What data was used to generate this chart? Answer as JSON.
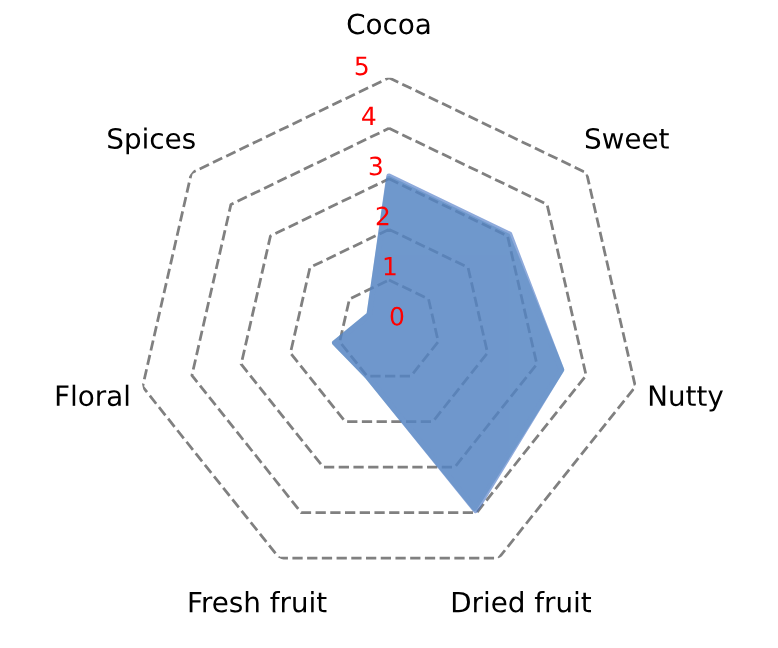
{
  "chart_data": {
    "type": "radar",
    "categories": [
      "Cocoa",
      "Sweet",
      "Nutty",
      "Dried fruit",
      "Fresh fruit",
      "Floral",
      "Spices"
    ],
    "series": [
      {
        "color": "#7fb2c0",
        "values": [
          3.0,
          3.0,
          3.5,
          3.9,
          1.0,
          1.1,
          0.5
        ]
      },
      {
        "color": "#4472c4",
        "values": [
          3.05,
          3.05,
          3.5,
          3.95,
          1.0,
          1.1,
          0.5
        ]
      }
    ],
    "ylim": [
      0,
      5
    ],
    "yticks": [
      0,
      1,
      2,
      3,
      4,
      5
    ],
    "grid": true,
    "line_style": "solid",
    "marker": "none"
  }
}
